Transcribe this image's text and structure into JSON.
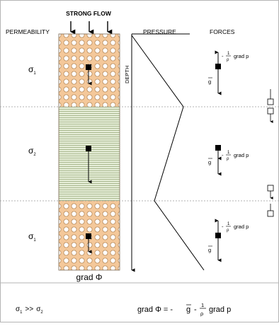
{
  "header": {
    "title": "STRONG FLOW",
    "permeability": "PERMEABILITY",
    "pressure": "PRESSURE",
    "forces": "FORCES",
    "depth": "DEPTH"
  },
  "layers": {
    "top_sigma": "σ",
    "top_sub": "1",
    "mid_sigma": "σ",
    "mid_sub": "2",
    "bot_sigma": "σ",
    "bot_sub": "1"
  },
  "forces": {
    "g_label": "g",
    "minus": "-",
    "frac_num": "1",
    "frac_den": "ρ",
    "grad_p": "grad p"
  },
  "bottom": {
    "grad_phi": "grad Φ"
  },
  "footer": {
    "relation_sigma1": "σ",
    "relation_sub1": "1",
    "relation_gg": ">>",
    "relation_sigma2": "σ",
    "relation_sub2": "2",
    "eq_left": "grad Φ = -",
    "eq_g": "g",
    "eq_minus": "-",
    "eq_num": "1",
    "eq_den": "ρ",
    "eq_right": "grad p"
  }
}
